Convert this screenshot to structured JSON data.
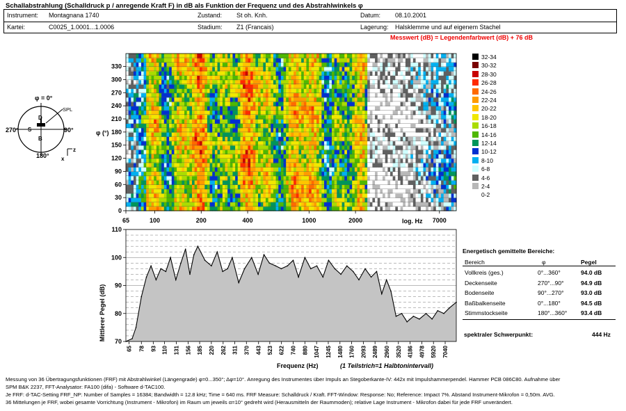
{
  "title": "Schallabstrahlung (Schalldruck p / anregende Kraft F) in dB als Funktion der Frequenz und des Abstrahlwinkels φ",
  "info": {
    "instrument_label": "Instrument:",
    "instrument_value": "Montagnana 1740",
    "kartei_label": "Kartei:",
    "kartei_value": "C0025_1.0001...1.0006",
    "zustand_label": "Zustand:",
    "zustand_value": "St oh. Knh.",
    "stadium_label": "Stadium:",
    "stadium_value": "Z1 (Francais)",
    "datum_label": "Datum:",
    "datum_value": "08.10.2001",
    "lagerung_label": "Lagerung:",
    "lagerung_value": "Halsklemme und auf eigenem Stachel"
  },
  "note": "Messwert (dB) = Legendenfarbwert (dB) + 76 dB",
  "diagram": {
    "top": "φ = 0°",
    "left": "270°",
    "right": "90°",
    "bottom": "180°",
    "spl": "SPL",
    "d": "D",
    "s": "S",
    "b": "B",
    "axis_x": "x",
    "axis_z": "z"
  },
  "legend": [
    {
      "label": "32-34",
      "color": "#000000"
    },
    {
      "label": "30-32",
      "color": "#7a0000"
    },
    {
      "label": "28-30",
      "color": "#c80000"
    },
    {
      "label": "26-28",
      "color": "#ff2a00"
    },
    {
      "label": "24-26",
      "color": "#ff6a00"
    },
    {
      "label": "22-24",
      "color": "#ff9b00"
    },
    {
      "label": "20-22",
      "color": "#ffc400"
    },
    {
      "label": "18-20",
      "color": "#f0e800"
    },
    {
      "label": "16-18",
      "color": "#aadc00"
    },
    {
      "label": "14-16",
      "color": "#4fb800"
    },
    {
      "label": "12-14",
      "color": "#00955a"
    },
    {
      "label": "10-12",
      "color": "#0030d0"
    },
    {
      "label": "8-10",
      "color": "#00b0f0"
    },
    {
      "label": "6-8",
      "color": "#cfffff"
    },
    {
      "label": "4-6",
      "color": "#606060"
    },
    {
      "label": "2-4",
      "color": "#b8b8b8"
    },
    {
      "label": "0-2",
      "color": "#ffffff"
    }
  ],
  "summary": {
    "heading": "Energetisch gemittelte Bereiche:",
    "col_bereich": "Bereich",
    "col_phi": "φ",
    "col_pegel": "Pegel",
    "rows": [
      {
        "name": "Vollkreis (ges.)",
        "range": "0°...360°",
        "value": "94.0 dB"
      },
      {
        "name": "Deckenseite",
        "range": "270°...90°",
        "value": "94.9 dB"
      },
      {
        "name": "Bodenseite",
        "range": "90°...270°",
        "value": "93.0 dB"
      },
      {
        "name": "Baßbalkenseite",
        "range": "0°...180°",
        "value": "94.5 dB"
      },
      {
        "name": "Stimmstockseite",
        "range": "180°...360°",
        "value": "93.4 dB"
      }
    ],
    "schwerpunkt_label": "spektraler Schwerpunkt:",
    "schwerpunkt_value": "444 Hz"
  },
  "footer": [
    "Messung von 36 Übertragungsfunktionen (FRF) mit Abstrahlwinkel (Längengrade) φ=0...350°; Δφ=10°. Anregung des Instrumentes über Impuls an Stegoberkante-IV:  442x mit Impulshammerpendel. Hammer PCB 086C80. Aufnahme über",
    "SPM B&K 2237,  FFT-Analysator: FA100 (difa) - Software d-TAC100.",
    "Je FRF: d-TAC-Setting FRF_NP: Number of Samples = 16384; Bandwidth = 12.8 kHz; Time = 640 ms. FRF Measure: Schalldruck / Kraft. FFT-Window: Response: No; Reference: Impact 7%. Abstand Instrument-Mikrofon = 0,50m. AVG.",
    "36 Mittelungen je FRF, wobei gesamte Vorrichtung  (Instrument - Mikrofon) im Raum um jeweils α=10° gedreht wird (Herausmitteln der Raummoden); relative Lage Instrument - Mikrofon  dabei für jede FRF unverändert."
  ],
  "chart_data": [
    {
      "type": "heatmap",
      "title": "",
      "xlabel": "log. Hz",
      "ylabel": "φ (°)",
      "x_scale": "log",
      "xlim": [
        65,
        9000
      ],
      "ylim": [
        0,
        350
      ],
      "x_ticks": [
        "65",
        "100",
        "200",
        "400",
        "1000",
        "2000",
        "7000"
      ],
      "y_ticks": [
        "0",
        "30",
        "60",
        "90",
        "120",
        "150",
        "180",
        "210",
        "240",
        "270",
        "300",
        "330"
      ],
      "color_scale": "legend (dB above 76 dB)"
    },
    {
      "type": "area",
      "title": "",
      "xlabel": "Frequenz (Hz)",
      "xlabel_note": "(1 Teilstrich=1 Halbtonintervall)",
      "ylabel": "Mittlerer Pegel (dB)",
      "x_scale": "log",
      "xlim": [
        62,
        8300
      ],
      "ylim": [
        70,
        110
      ],
      "y_ticks": [
        "70",
        "80",
        "90",
        "100",
        "110"
      ],
      "x_ticks": [
        "65",
        "78",
        "93",
        "110",
        "131",
        "156",
        "185",
        "220",
        "262",
        "311",
        "370",
        "443",
        "523",
        "622",
        "740",
        "880",
        "1047",
        "1245",
        "1480",
        "1760",
        "2093",
        "2489",
        "2960",
        "3520",
        "4186",
        "4978",
        "5920",
        "7040"
      ],
      "x": [
        62,
        68,
        72,
        78,
        84,
        90,
        97,
        104,
        112,
        120,
        130,
        140,
        150,
        160,
        170,
        180,
        200,
        220,
        240,
        260,
        280,
        300,
        330,
        360,
        400,
        440,
        480,
        520,
        570,
        620,
        680,
        740,
        800,
        880,
        960,
        1050,
        1150,
        1250,
        1370,
        1500,
        1640,
        1800,
        1960,
        2150,
        2350,
        2550,
        2750,
        2950,
        3150,
        3400,
        3700,
        4000,
        4400,
        4800,
        5300,
        5800,
        6300,
        6900,
        7500,
        8300
      ],
      "values": [
        70,
        71,
        75,
        86,
        93,
        97,
        92,
        96,
        95,
        100,
        92,
        98,
        103,
        94,
        101,
        104,
        99,
        97,
        102,
        95,
        96,
        100,
        91,
        96,
        100,
        94,
        101,
        98,
        97,
        96,
        97,
        99,
        93,
        100,
        96,
        97,
        93,
        99,
        96,
        94,
        97,
        95,
        92,
        96,
        93,
        95,
        87,
        92,
        88,
        79,
        80,
        77,
        79,
        78,
        80,
        78,
        81,
        80,
        82,
        84
      ]
    }
  ]
}
